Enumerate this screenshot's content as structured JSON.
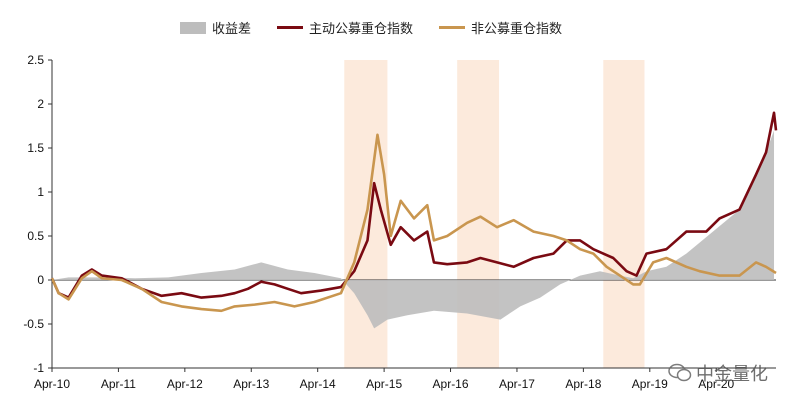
{
  "chart_data": {
    "type": "line",
    "xlabel": "",
    "ylabel": "",
    "ylim": [
      -1,
      2.5
    ],
    "yticks": [
      "2.5",
      "2",
      "1.5",
      "1",
      "0.5",
      "0",
      "-0.5",
      "-1"
    ],
    "xticks": [
      "Apr-10",
      "Apr-11",
      "Apr-12",
      "Apr-13",
      "Apr-14",
      "Apr-15",
      "Apr-16",
      "Apr-17",
      "Apr-18",
      "Apr-19",
      "Apr-20"
    ],
    "xrange": [
      2010.25,
      2021.15
    ],
    "highlight_periods": [
      [
        2014.65,
        2015.3
      ],
      [
        2016.35,
        2016.98
      ],
      [
        2018.55,
        2019.17
      ]
    ],
    "legend_placement": "top",
    "series": [
      {
        "name": "收益差",
        "kind": "area",
        "color": "#bdbdbd",
        "points": [
          [
            2010.25,
            0
          ],
          [
            2010.5,
            0.03
          ],
          [
            2011.0,
            0.03
          ],
          [
            2011.5,
            0.02
          ],
          [
            2012.0,
            0.03
          ],
          [
            2012.5,
            0.08
          ],
          [
            2013.0,
            0.12
          ],
          [
            2013.4,
            0.2
          ],
          [
            2013.8,
            0.12
          ],
          [
            2014.2,
            0.08
          ],
          [
            2014.6,
            0.02
          ],
          [
            2014.8,
            -0.15
          ],
          [
            2015.0,
            -0.4
          ],
          [
            2015.1,
            -0.55
          ],
          [
            2015.3,
            -0.45
          ],
          [
            2015.6,
            -0.4
          ],
          [
            2016.0,
            -0.35
          ],
          [
            2016.5,
            -0.38
          ],
          [
            2017.0,
            -0.45
          ],
          [
            2017.3,
            -0.3
          ],
          [
            2017.6,
            -0.2
          ],
          [
            2017.9,
            -0.05
          ],
          [
            2018.2,
            0.05
          ],
          [
            2018.5,
            0.1
          ],
          [
            2018.8,
            0.05
          ],
          [
            2019.0,
            0.02
          ],
          [
            2019.2,
            0.1
          ],
          [
            2019.5,
            0.15
          ],
          [
            2019.8,
            0.3
          ],
          [
            2020.2,
            0.55
          ],
          [
            2020.6,
            0.8
          ],
          [
            2021.0,
            1.45
          ],
          [
            2021.12,
            1.7
          ]
        ]
      },
      {
        "name": "主动公募重仓指数",
        "kind": "line",
        "color": "#7a0a12",
        "points": [
          [
            2010.25,
            0.02
          ],
          [
            2010.35,
            -0.15
          ],
          [
            2010.5,
            -0.2
          ],
          [
            2010.7,
            0.05
          ],
          [
            2010.85,
            0.12
          ],
          [
            2011.0,
            0.05
          ],
          [
            2011.3,
            0.02
          ],
          [
            2011.6,
            -0.1
          ],
          [
            2011.9,
            -0.18
          ],
          [
            2012.2,
            -0.15
          ],
          [
            2012.5,
            -0.2
          ],
          [
            2012.8,
            -0.18
          ],
          [
            2013.0,
            -0.15
          ],
          [
            2013.2,
            -0.1
          ],
          [
            2013.4,
            -0.02
          ],
          [
            2013.6,
            -0.05
          ],
          [
            2013.8,
            -0.1
          ],
          [
            2014.0,
            -0.15
          ],
          [
            2014.3,
            -0.12
          ],
          [
            2014.6,
            -0.08
          ],
          [
            2014.8,
            0.1
          ],
          [
            2015.0,
            0.45
          ],
          [
            2015.1,
            1.1
          ],
          [
            2015.2,
            0.8
          ],
          [
            2015.35,
            0.4
          ],
          [
            2015.5,
            0.6
          ],
          [
            2015.7,
            0.45
          ],
          [
            2015.9,
            0.55
          ],
          [
            2016.0,
            0.2
          ],
          [
            2016.2,
            0.18
          ],
          [
            2016.5,
            0.2
          ],
          [
            2016.7,
            0.25
          ],
          [
            2016.95,
            0.2
          ],
          [
            2017.2,
            0.15
          ],
          [
            2017.5,
            0.25
          ],
          [
            2017.8,
            0.3
          ],
          [
            2018.0,
            0.45
          ],
          [
            2018.2,
            0.45
          ],
          [
            2018.4,
            0.35
          ],
          [
            2018.7,
            0.25
          ],
          [
            2018.9,
            0.1
          ],
          [
            2019.05,
            0.05
          ],
          [
            2019.2,
            0.3
          ],
          [
            2019.5,
            0.35
          ],
          [
            2019.8,
            0.55
          ],
          [
            2020.1,
            0.55
          ],
          [
            2020.3,
            0.7
          ],
          [
            2020.6,
            0.8
          ],
          [
            2020.85,
            1.2
          ],
          [
            2021.0,
            1.45
          ],
          [
            2021.12,
            1.9
          ],
          [
            2021.15,
            1.7
          ]
        ]
      },
      {
        "name": "非公募重仓指数",
        "kind": "line",
        "color": "#c9964f",
        "points": [
          [
            2010.25,
            0.02
          ],
          [
            2010.35,
            -0.15
          ],
          [
            2010.5,
            -0.22
          ],
          [
            2010.7,
            0.02
          ],
          [
            2010.85,
            0.1
          ],
          [
            2011.0,
            0.02
          ],
          [
            2011.3,
            0.0
          ],
          [
            2011.6,
            -0.1
          ],
          [
            2011.9,
            -0.25
          ],
          [
            2012.2,
            -0.3
          ],
          [
            2012.5,
            -0.33
          ],
          [
            2012.8,
            -0.35
          ],
          [
            2013.0,
            -0.3
          ],
          [
            2013.3,
            -0.28
          ],
          [
            2013.6,
            -0.25
          ],
          [
            2013.9,
            -0.3
          ],
          [
            2014.2,
            -0.25
          ],
          [
            2014.6,
            -0.15
          ],
          [
            2014.8,
            0.2
          ],
          [
            2015.0,
            0.8
          ],
          [
            2015.15,
            1.65
          ],
          [
            2015.25,
            1.2
          ],
          [
            2015.35,
            0.5
          ],
          [
            2015.5,
            0.9
          ],
          [
            2015.7,
            0.7
          ],
          [
            2015.9,
            0.85
          ],
          [
            2016.0,
            0.45
          ],
          [
            2016.2,
            0.5
          ],
          [
            2016.5,
            0.65
          ],
          [
            2016.7,
            0.72
          ],
          [
            2016.95,
            0.6
          ],
          [
            2017.2,
            0.68
          ],
          [
            2017.5,
            0.55
          ],
          [
            2017.8,
            0.5
          ],
          [
            2018.0,
            0.45
          ],
          [
            2018.2,
            0.35
          ],
          [
            2018.4,
            0.3
          ],
          [
            2018.6,
            0.15
          ],
          [
            2018.8,
            0.05
          ],
          [
            2019.0,
            -0.05
          ],
          [
            2019.1,
            -0.05
          ],
          [
            2019.3,
            0.2
          ],
          [
            2019.5,
            0.25
          ],
          [
            2019.8,
            0.15
          ],
          [
            2020.0,
            0.1
          ],
          [
            2020.3,
            0.05
          ],
          [
            2020.6,
            0.05
          ],
          [
            2020.85,
            0.2
          ],
          [
            2021.0,
            0.15
          ],
          [
            2021.15,
            0.08
          ]
        ]
      }
    ]
  },
  "watermark_text": "中金量化"
}
